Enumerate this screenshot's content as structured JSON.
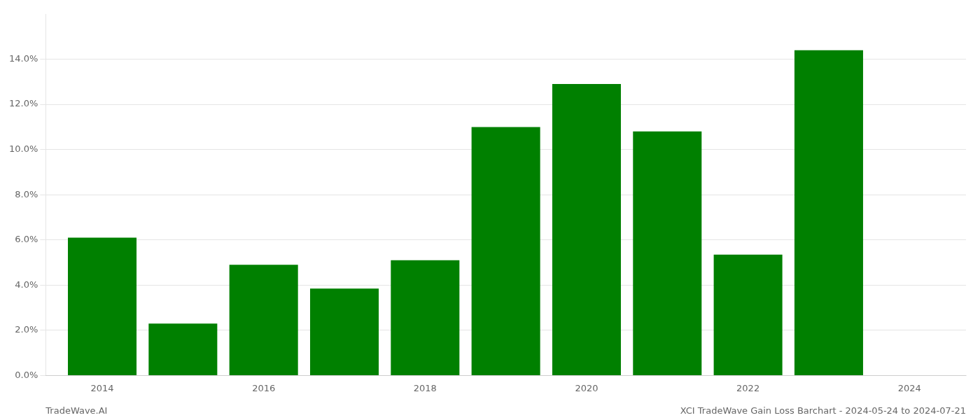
{
  "chart_data": {
    "type": "bar",
    "x": [
      2014,
      2015,
      2016,
      2017,
      2018,
      2019,
      2020,
      2021,
      2022,
      2023
    ],
    "values": [
      0.061,
      0.023,
      0.049,
      0.0385,
      0.051,
      0.11,
      0.129,
      0.108,
      0.0535,
      0.144
    ],
    "color": "#008000",
    "xlim": [
      2013.3,
      2024.7
    ],
    "xticks": [
      2014,
      2016,
      2018,
      2020,
      2022,
      2024
    ],
    "ylim": [
      0,
      0.16
    ],
    "yticks": [
      {
        "value": 0.0,
        "label": "0.0%"
      },
      {
        "value": 0.02,
        "label": "2.0%"
      },
      {
        "value": 0.04,
        "label": "4.0%"
      },
      {
        "value": 0.06,
        "label": "6.0%"
      },
      {
        "value": 0.08,
        "label": "8.0%"
      },
      {
        "value": 0.1,
        "label": "10.0%"
      },
      {
        "value": 0.12,
        "label": "12.0%"
      },
      {
        "value": 0.14,
        "label": "14.0%"
      }
    ],
    "grid": true,
    "annotations": [
      "TradeWave.AI",
      "XCI TradeWave Gain Loss Barchart - 2024-05-24 to 2024-07-21"
    ]
  }
}
